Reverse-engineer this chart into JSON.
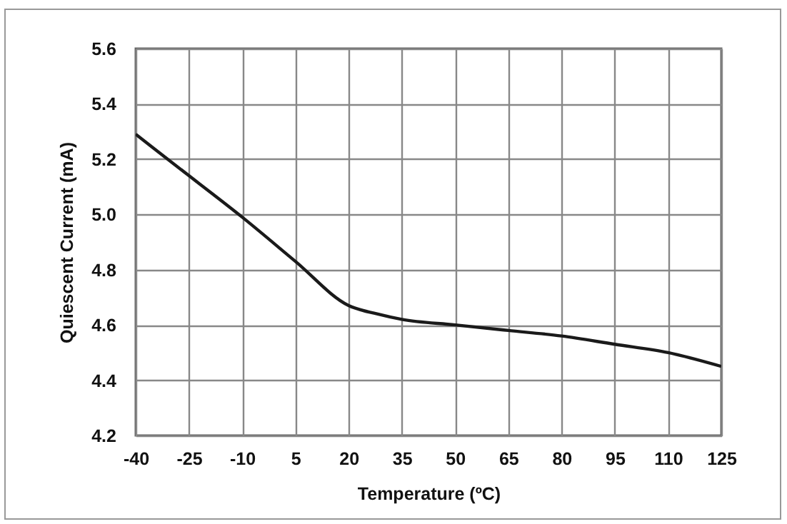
{
  "chart_data": {
    "type": "line",
    "xlabel": "Temperature (ºC)",
    "ylabel": "Quiescent Current (mA)",
    "x": [
      -40,
      -25,
      -10,
      5,
      20,
      28,
      35,
      50,
      65,
      80,
      95,
      110,
      125
    ],
    "series": [
      {
        "color": "#1a1a1a",
        "values": [
          5.29,
          5.14,
          4.99,
          4.83,
          4.67,
          4.64,
          4.62,
          4.6,
          4.58,
          4.56,
          4.53,
          4.5,
          4.45
        ]
      }
    ],
    "xlim": [
      -40,
      125
    ],
    "xticks": [
      -40,
      -25,
      -10,
      5,
      20,
      35,
      50,
      65,
      80,
      95,
      110,
      125
    ],
    "ylim": [
      4.2,
      5.6
    ],
    "yticks": [
      4.2,
      4.4,
      4.6,
      4.8,
      {
        "value": 5,
        "label": "5.0"
      },
      5.2,
      5.4,
      5.6
    ],
    "grid": true,
    "marker": "none",
    "line_style": "solid",
    "legend": false
  }
}
